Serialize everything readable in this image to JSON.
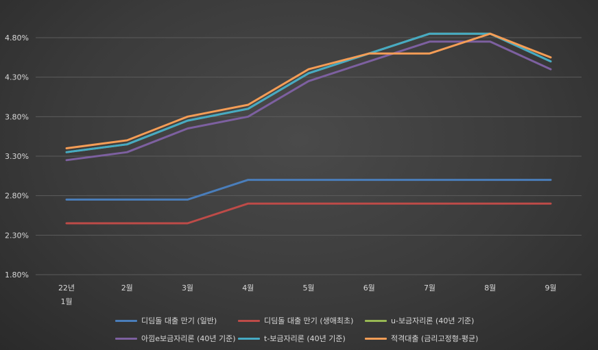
{
  "chart_data": {
    "type": "line",
    "categories": [
      "22년\n1월",
      "2월",
      "3월",
      "4월",
      "5월",
      "6월",
      "7월",
      "8월",
      "9월"
    ],
    "ylim": [
      1.8,
      4.8
    ],
    "yticks": [
      "1.80%",
      "2.30%",
      "2.80%",
      "3.30%",
      "3.80%",
      "4.30%",
      "4.80%"
    ],
    "ytick_values": [
      1.8,
      2.3,
      2.8,
      3.3,
      3.8,
      4.3,
      4.8
    ],
    "grid": true,
    "legend_position": "bottom",
    "series": [
      {
        "name": "디딤돌 대출 만기 (일반)",
        "color": "#4a7ebb",
        "values": [
          2.75,
          2.75,
          2.75,
          3.0,
          3.0,
          3.0,
          3.0,
          3.0,
          3.0
        ]
      },
      {
        "name": "디딤돌 대출 만기 (생애최초)",
        "color": "#be4b48",
        "values": [
          2.45,
          2.45,
          2.45,
          2.7,
          2.7,
          2.7,
          2.7,
          2.7,
          2.7
        ]
      },
      {
        "name": "u-보금자리론 (40년 기준)",
        "color": "#98b954",
        "values": [
          3.35,
          3.45,
          3.75,
          3.9,
          4.35,
          4.6,
          4.85,
          4.85,
          4.5
        ]
      },
      {
        "name": "아낌e보금자리론 (40년 기준)",
        "color": "#7d60a0",
        "values": [
          3.25,
          3.35,
          3.65,
          3.8,
          4.25,
          4.5,
          4.75,
          4.75,
          4.4
        ]
      },
      {
        "name": "t-보금자리론 (40년 기준)",
        "color": "#46aac4",
        "values": [
          3.35,
          3.45,
          3.75,
          3.9,
          4.35,
          4.6,
          4.85,
          4.85,
          4.5
        ]
      },
      {
        "name": "적격대출 (금리고정형-평균)",
        "color": "#f59d56",
        "values": [
          3.4,
          3.5,
          3.8,
          3.95,
          4.4,
          4.6,
          4.6,
          4.85,
          4.55
        ]
      }
    ]
  }
}
